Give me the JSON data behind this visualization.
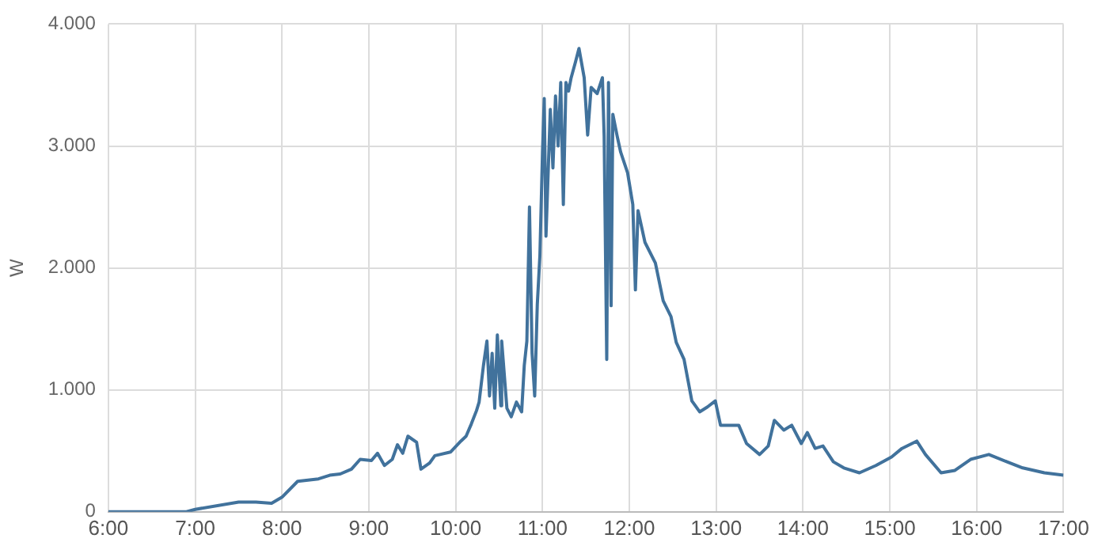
{
  "chart_data": {
    "type": "line",
    "ylabel": "W",
    "grid": true,
    "legend": false,
    "marker": "none",
    "line_style": "solid",
    "xlim": [
      6,
      17
    ],
    "xticks": [
      {
        "value": 6,
        "label": "6:00"
      },
      {
        "value": 7,
        "label": "7:00"
      },
      {
        "value": 8,
        "label": "8:00"
      },
      {
        "value": 9,
        "label": "9:00"
      },
      {
        "value": 10,
        "label": "10:00"
      },
      {
        "value": 11,
        "label": "11:00"
      },
      {
        "value": 12,
        "label": "12:00"
      },
      {
        "value": 13,
        "label": "13:00"
      },
      {
        "value": 14,
        "label": "14:00"
      },
      {
        "value": 15,
        "label": "15:00"
      },
      {
        "value": 16,
        "label": "16:00"
      },
      {
        "value": 17,
        "label": "17:00"
      }
    ],
    "ylim": [
      0,
      4000
    ],
    "yticks": [
      0,
      {
        "value": 1000,
        "label": "1.000"
      },
      {
        "value": 2000,
        "label": "2.000"
      },
      {
        "value": 3000,
        "label": "3.000"
      },
      {
        "value": 4000,
        "label": "4.000"
      }
    ],
    "series": [
      {
        "color": "#41729c",
        "x": [
          6,
          6.9,
          7,
          7.5,
          7.7,
          7.88,
          8,
          8.18,
          8.42,
          8.55,
          8.67,
          8.8,
          8.9,
          9.03,
          9.1,
          9.18,
          9.27,
          9.33,
          9.39,
          9.45,
          9.55,
          9.6,
          9.7,
          9.76,
          9.94,
          10.06,
          10.12,
          10.18,
          10.24,
          10.27,
          10.32,
          10.36,
          10.39,
          10.42,
          10.45,
          10.48,
          10.52,
          10.53,
          10.59,
          10.64,
          10.7,
          10.76,
          10.79,
          10.82,
          10.85,
          10.88,
          10.91,
          10.94,
          10.97,
          11,
          11.02,
          11.04,
          11.09,
          11.12,
          11.15,
          11.18,
          11.21,
          11.24,
          11.27,
          11.3,
          11.33,
          11.38,
          11.42,
          11.48,
          11.52,
          11.56,
          11.63,
          11.69,
          11.71,
          11.74,
          11.76,
          11.79,
          11.81,
          11.86,
          11.9,
          11.98,
          12.04,
          12.07,
          12.1,
          12.18,
          12.3,
          12.39,
          12.48,
          12.54,
          12.63,
          12.72,
          12.81,
          12.9,
          12.99,
          13.05,
          13.26,
          13.35,
          13.5,
          13.6,
          13.67,
          13.78,
          13.87,
          13.98,
          14.05,
          14.14,
          14.23,
          14.35,
          14.47,
          14.65,
          14.84,
          15.02,
          15.14,
          15.31,
          15.41,
          15.59,
          15.75,
          15.93,
          16.14,
          16.35,
          16.53,
          16.78,
          17
        ],
        "values": [
          0,
          0,
          20,
          80,
          80,
          70,
          120,
          250,
          270,
          300,
          310,
          350,
          430,
          420,
          480,
          380,
          430,
          550,
          480,
          620,
          570,
          350,
          400,
          460,
          490,
          580,
          620,
          720,
          830,
          900,
          1200,
          1400,
          950,
          1300,
          850,
          1450,
          870,
          1400,
          850,
          780,
          900,
          820,
          1200,
          1400,
          2500,
          1300,
          950,
          1700,
          2100,
          2950,
          3390,
          2260,
          3300,
          2820,
          3410,
          3000,
          3520,
          2520,
          3520,
          3450,
          3560,
          3690,
          3800,
          3560,
          3090,
          3480,
          3430,
          3560,
          3080,
          1250,
          3520,
          1690,
          3260,
          3080,
          2950,
          2780,
          2520,
          1820,
          2470,
          2210,
          2040,
          1730,
          1600,
          1390,
          1250,
          910,
          820,
          860,
          910,
          710,
          710,
          560,
          470,
          540,
          750,
          670,
          710,
          560,
          650,
          520,
          540,
          410,
          360,
          320,
          380,
          450,
          520,
          580,
          470,
          320,
          340,
          430,
          470,
          410,
          360,
          320,
          300
        ]
      }
    ]
  }
}
